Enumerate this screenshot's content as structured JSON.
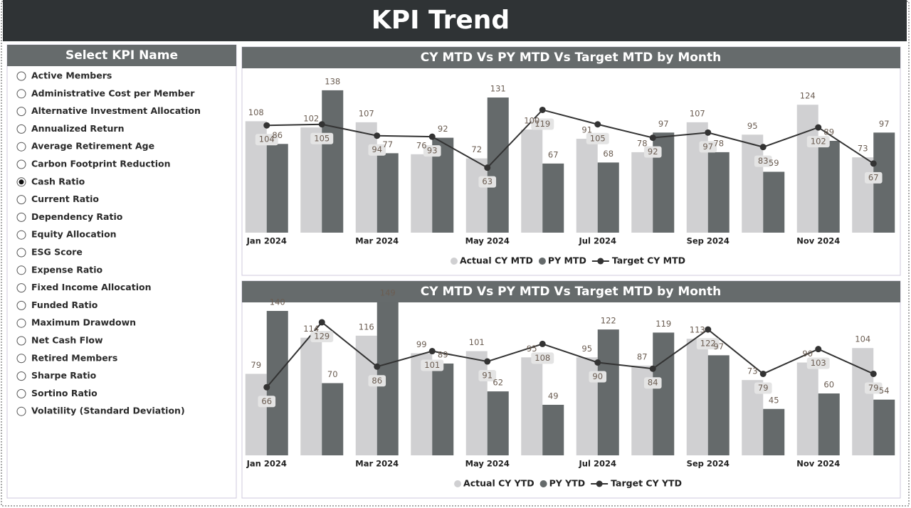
{
  "header": {
    "title": "KPI Trend"
  },
  "slicer": {
    "title": "Select KPI Name",
    "items": [
      {
        "label": "Active Members",
        "selected": false
      },
      {
        "label": "Administrative Cost per Member",
        "selected": false
      },
      {
        "label": "Alternative Investment Allocation",
        "selected": false
      },
      {
        "label": "Annualized Return",
        "selected": false
      },
      {
        "label": "Average Retirement Age",
        "selected": false
      },
      {
        "label": "Carbon Footprint Reduction",
        "selected": false
      },
      {
        "label": "Cash Ratio",
        "selected": true
      },
      {
        "label": "Current Ratio",
        "selected": false
      },
      {
        "label": "Dependency Ratio",
        "selected": false
      },
      {
        "label": "Equity Allocation",
        "selected": false
      },
      {
        "label": "ESG Score",
        "selected": false
      },
      {
        "label": "Expense Ratio",
        "selected": false
      },
      {
        "label": "Fixed Income Allocation",
        "selected": false
      },
      {
        "label": "Funded Ratio",
        "selected": false
      },
      {
        "label": "Maximum Drawdown",
        "selected": false
      },
      {
        "label": "Net Cash Flow",
        "selected": false
      },
      {
        "label": "Retired Members",
        "selected": false
      },
      {
        "label": "Sharpe Ratio",
        "selected": false
      },
      {
        "label": "Sortino Ratio",
        "selected": false
      },
      {
        "label": "Volatility (Standard Deviation)",
        "selected": false
      }
    ]
  },
  "chart_data": [
    {
      "type": "combo",
      "title": "CY MTD Vs PY MTD Vs Target MTD by Month",
      "categories": [
        "Jan 2024",
        null,
        "Mar 2024",
        null,
        "May 2024",
        null,
        "Jul 2024",
        null,
        "Sep 2024",
        null,
        "Nov 2024",
        null
      ],
      "ylim": [
        0,
        160
      ],
      "series": [
        {
          "name": "Actual CY MTD",
          "type": "bar",
          "color": "#d0d0d2",
          "values": [
            108,
            102,
            107,
            76,
            72,
            100,
            91,
            78,
            107,
            95,
            124,
            73
          ]
        },
        {
          "name": "PY MTD",
          "type": "bar",
          "color": "#656a6b",
          "values": [
            86,
            138,
            77,
            92,
            131,
            67,
            68,
            97,
            78,
            59,
            89,
            97
          ]
        },
        {
          "name": "Target CY MTD",
          "type": "line",
          "color": "#333333",
          "values": [
            104,
            105,
            94,
            93,
            63,
            119,
            105,
            92,
            97,
            83,
            102,
            67
          ]
        }
      ]
    },
    {
      "type": "combo",
      "title": "CY MTD Vs PY MTD Vs Target MTD by Month",
      "categories": [
        "Jan 2024",
        null,
        "Mar 2024",
        null,
        "May 2024",
        null,
        "Jul 2024",
        null,
        "Sep 2024",
        null,
        "Nov 2024",
        null
      ],
      "ylim": [
        0,
        160
      ],
      "series": [
        {
          "name": "Actual CY YTD",
          "type": "bar",
          "color": "#d0d0d2",
          "values": [
            79,
            114,
            116,
            99,
            101,
            95,
            95,
            87,
            113,
            73,
            90,
            104
          ]
        },
        {
          "name": "PY YTD",
          "type": "bar",
          "color": "#656a6b",
          "values": [
            140,
            70,
            149,
            89,
            62,
            49,
            122,
            119,
            97,
            45,
            60,
            54
          ]
        },
        {
          "name": "Target CY YTD",
          "type": "line",
          "color": "#333333",
          "values": [
            66,
            129,
            86,
            101,
            91,
            108,
            90,
            84,
            122,
            79,
            103,
            79
          ]
        }
      ]
    }
  ]
}
